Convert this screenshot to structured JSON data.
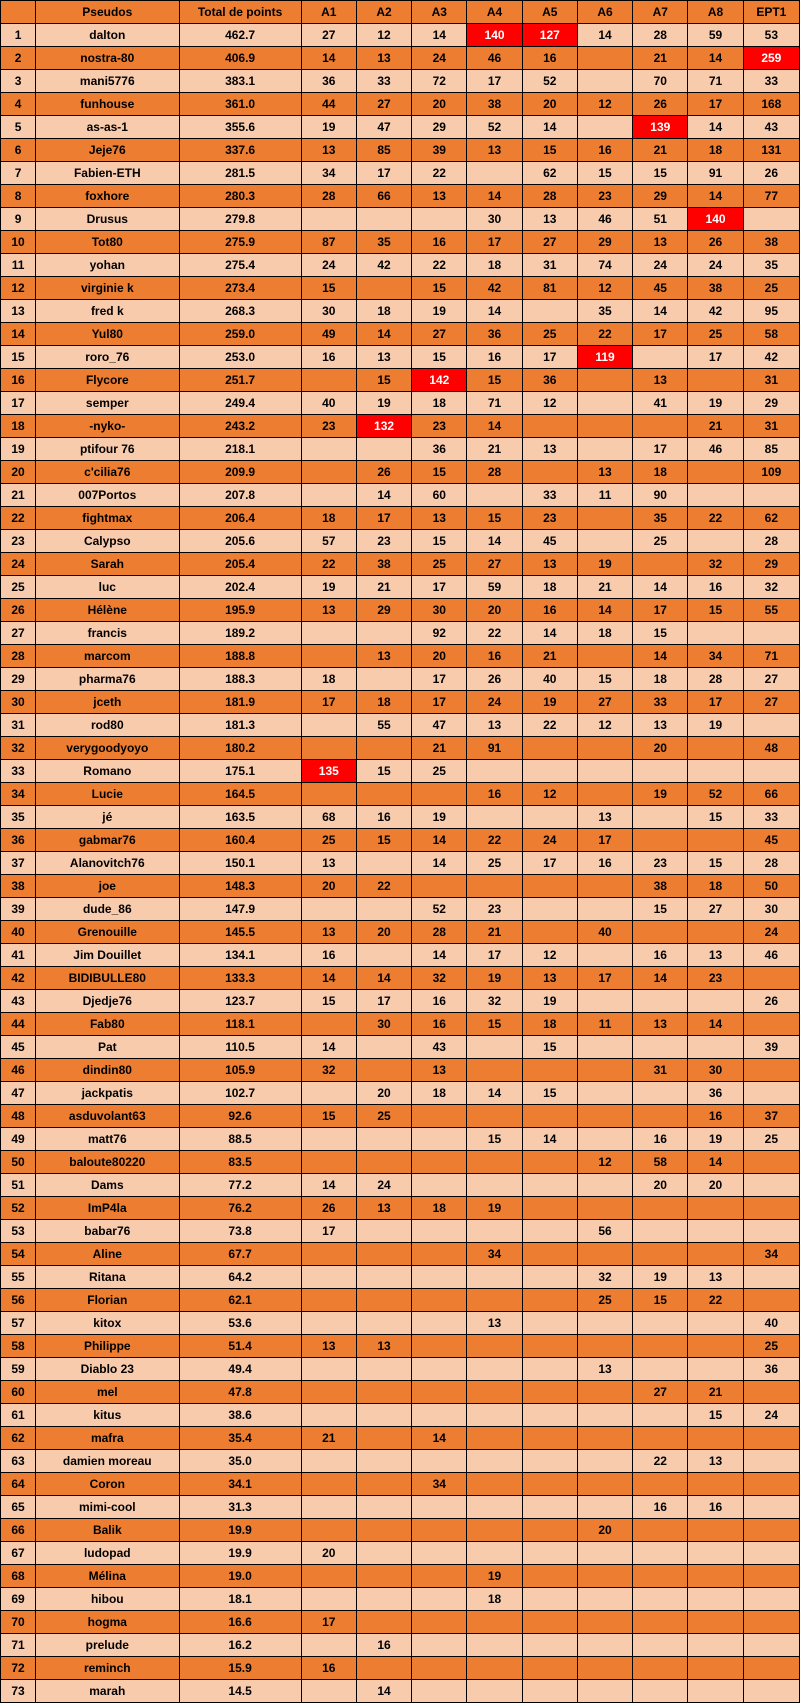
{
  "colors": {
    "header_bg": "#ed7d31",
    "row_dark": "#ed7d31",
    "row_light": "#f8cbad",
    "highlight_bg": "#ff0000",
    "highlight_fg": "#ffffff",
    "border": "#000000"
  },
  "columns": [
    "",
    "Pseudos",
    "Total de points",
    "A1",
    "A2",
    "A3",
    "A4",
    "A5",
    "A6",
    "A7",
    "A8",
    "EPT1"
  ],
  "rows": [
    {
      "rank": 1,
      "pseudo": "dalton",
      "total": "462.7",
      "a": [
        "27",
        "12",
        "14",
        "140",
        "127",
        "14",
        "28",
        "59"
      ],
      "ept": "53",
      "hl": [
        3,
        4
      ]
    },
    {
      "rank": 2,
      "pseudo": "nostra-80",
      "total": "406.9",
      "a": [
        "14",
        "13",
        "24",
        "46",
        "16",
        "",
        "21",
        "14"
      ],
      "ept": "259",
      "hl": [],
      "hlEpt": true
    },
    {
      "rank": 3,
      "pseudo": "mani5776",
      "total": "383.1",
      "a": [
        "36",
        "33",
        "72",
        "17",
        "52",
        "",
        "70",
        "71"
      ],
      "ept": "33",
      "hl": []
    },
    {
      "rank": 4,
      "pseudo": "funhouse",
      "total": "361.0",
      "a": [
        "44",
        "27",
        "20",
        "38",
        "20",
        "12",
        "26",
        "17"
      ],
      "ept": "168",
      "hl": []
    },
    {
      "rank": 5,
      "pseudo": "as-as-1",
      "total": "355.6",
      "a": [
        "19",
        "47",
        "29",
        "52",
        "14",
        "",
        "139",
        "14"
      ],
      "ept": "43",
      "hl": [
        6
      ]
    },
    {
      "rank": 6,
      "pseudo": "Jeje76",
      "total": "337.6",
      "a": [
        "13",
        "85",
        "39",
        "13",
        "15",
        "16",
        "21",
        "18"
      ],
      "ept": "131",
      "hl": []
    },
    {
      "rank": 7,
      "pseudo": "Fabien-ETH",
      "total": "281.5",
      "a": [
        "34",
        "17",
        "22",
        "",
        "62",
        "15",
        "15",
        "91"
      ],
      "ept": "26",
      "hl": []
    },
    {
      "rank": 8,
      "pseudo": "foxhore",
      "total": "280.3",
      "a": [
        "28",
        "66",
        "13",
        "14",
        "28",
        "23",
        "29",
        "14"
      ],
      "ept": "77",
      "hl": []
    },
    {
      "rank": 9,
      "pseudo": "Drusus",
      "total": "279.8",
      "a": [
        "",
        "",
        "",
        "30",
        "13",
        "46",
        "51",
        "140"
      ],
      "ept": "",
      "hl": [
        7
      ]
    },
    {
      "rank": 10,
      "pseudo": "Tot80",
      "total": "275.9",
      "a": [
        "87",
        "35",
        "16",
        "17",
        "27",
        "29",
        "13",
        "26"
      ],
      "ept": "38",
      "hl": []
    },
    {
      "rank": 11,
      "pseudo": "yohan",
      "total": "275.4",
      "a": [
        "24",
        "42",
        "22",
        "18",
        "31",
        "74",
        "24",
        "24"
      ],
      "ept": "35",
      "hl": []
    },
    {
      "rank": 12,
      "pseudo": "virginie k",
      "total": "273.4",
      "a": [
        "15",
        "",
        "15",
        "42",
        "81",
        "12",
        "45",
        "38"
      ],
      "ept": "25",
      "hl": []
    },
    {
      "rank": 13,
      "pseudo": "fred k",
      "total": "268.3",
      "a": [
        "30",
        "18",
        "19",
        "14",
        "",
        "35",
        "14",
        "42"
      ],
      "ept": "95",
      "hl": []
    },
    {
      "rank": 14,
      "pseudo": "Yul80",
      "total": "259.0",
      "a": [
        "49",
        "14",
        "27",
        "36",
        "25",
        "22",
        "17",
        "25"
      ],
      "ept": "58",
      "hl": []
    },
    {
      "rank": 15,
      "pseudo": "roro_76",
      "total": "253.0",
      "a": [
        "16",
        "13",
        "15",
        "16",
        "17",
        "119",
        "",
        "17"
      ],
      "ept": "42",
      "hl": [
        5
      ]
    },
    {
      "rank": 16,
      "pseudo": "Flycore",
      "total": "251.7",
      "a": [
        "",
        "15",
        "142",
        "15",
        "36",
        "",
        "13",
        ""
      ],
      "ept": "31",
      "hl": [
        2
      ]
    },
    {
      "rank": 17,
      "pseudo": "semper",
      "total": "249.4",
      "a": [
        "40",
        "19",
        "18",
        "71",
        "12",
        "",
        "41",
        "19"
      ],
      "ept": "29",
      "hl": []
    },
    {
      "rank": 18,
      "pseudo": "-nyko-",
      "total": "243.2",
      "a": [
        "23",
        "132",
        "23",
        "14",
        "",
        "",
        "",
        "21"
      ],
      "ept": "31",
      "hl": [
        1
      ]
    },
    {
      "rank": 19,
      "pseudo": "ptifour 76",
      "total": "218.1",
      "a": [
        "",
        "",
        "36",
        "21",
        "13",
        "",
        "17",
        "46"
      ],
      "ept": "85",
      "hl": []
    },
    {
      "rank": 20,
      "pseudo": "c'cilia76",
      "total": "209.9",
      "a": [
        "",
        "26",
        "15",
        "28",
        "",
        "13",
        "18",
        ""
      ],
      "ept": "109",
      "hl": []
    },
    {
      "rank": 21,
      "pseudo": "007Portos",
      "total": "207.8",
      "a": [
        "",
        "14",
        "60",
        "",
        "33",
        "11",
        "90",
        ""
      ],
      "ept": "",
      "hl": []
    },
    {
      "rank": 22,
      "pseudo": "fightmax",
      "total": "206.4",
      "a": [
        "18",
        "17",
        "13",
        "15",
        "23",
        "",
        "35",
        "22"
      ],
      "ept": "62",
      "hl": []
    },
    {
      "rank": 23,
      "pseudo": "Calypso",
      "total": "205.6",
      "a": [
        "57",
        "23",
        "15",
        "14",
        "45",
        "",
        "25",
        ""
      ],
      "ept": "28",
      "hl": []
    },
    {
      "rank": 24,
      "pseudo": "Sarah",
      "total": "205.4",
      "a": [
        "22",
        "38",
        "25",
        "27",
        "13",
        "19",
        "",
        "32"
      ],
      "ept": "29",
      "hl": []
    },
    {
      "rank": 25,
      "pseudo": "luc",
      "total": "202.4",
      "a": [
        "19",
        "21",
        "17",
        "59",
        "18",
        "21",
        "14",
        "16"
      ],
      "ept": "32",
      "hl": []
    },
    {
      "rank": 26,
      "pseudo": "Hélène",
      "total": "195.9",
      "a": [
        "13",
        "29",
        "30",
        "20",
        "16",
        "14",
        "17",
        "15"
      ],
      "ept": "55",
      "hl": []
    },
    {
      "rank": 27,
      "pseudo": "francis",
      "total": "189.2",
      "a": [
        "",
        "",
        "92",
        "22",
        "14",
        "18",
        "15",
        ""
      ],
      "ept": "",
      "hl": []
    },
    {
      "rank": 28,
      "pseudo": "marcom",
      "total": "188.8",
      "a": [
        "",
        "13",
        "20",
        "16",
        "21",
        "",
        "14",
        "34"
      ],
      "ept": "71",
      "hl": []
    },
    {
      "rank": 29,
      "pseudo": "pharma76",
      "total": "188.3",
      "a": [
        "18",
        "",
        "17",
        "26",
        "40",
        "15",
        "18",
        "28"
      ],
      "ept": "27",
      "hl": []
    },
    {
      "rank": 30,
      "pseudo": "jceth",
      "total": "181.9",
      "a": [
        "17",
        "18",
        "17",
        "24",
        "19",
        "27",
        "33",
        "17"
      ],
      "ept": "27",
      "hl": []
    },
    {
      "rank": 31,
      "pseudo": "rod80",
      "total": "181.3",
      "a": [
        "",
        "55",
        "47",
        "13",
        "22",
        "12",
        "13",
        "19"
      ],
      "ept": "",
      "hl": []
    },
    {
      "rank": 32,
      "pseudo": "verygoodyoyo",
      "total": "180.2",
      "a": [
        "",
        "",
        "21",
        "91",
        "",
        "",
        "20",
        ""
      ],
      "ept": "48",
      "hl": []
    },
    {
      "rank": 33,
      "pseudo": "Romano",
      "total": "175.1",
      "a": [
        "135",
        "15",
        "25",
        "",
        "",
        "",
        "",
        ""
      ],
      "ept": "",
      "hl": [
        0
      ]
    },
    {
      "rank": 34,
      "pseudo": "Lucie",
      "total": "164.5",
      "a": [
        "",
        "",
        "",
        "16",
        "12",
        "",
        "19",
        "52"
      ],
      "ept": "66",
      "hl": []
    },
    {
      "rank": 35,
      "pseudo": "jé",
      "total": "163.5",
      "a": [
        "68",
        "16",
        "19",
        "",
        "",
        "13",
        "",
        "15"
      ],
      "ept": "33",
      "hl": []
    },
    {
      "rank": 36,
      "pseudo": "gabmar76",
      "total": "160.4",
      "a": [
        "25",
        "15",
        "14",
        "22",
        "24",
        "17",
        "",
        ""
      ],
      "ept": "45",
      "hl": []
    },
    {
      "rank": 37,
      "pseudo": "Alanovitch76",
      "total": "150.1",
      "a": [
        "13",
        "",
        "14",
        "25",
        "17",
        "16",
        "23",
        "15"
      ],
      "ept": "28",
      "hl": []
    },
    {
      "rank": 38,
      "pseudo": "joe",
      "total": "148.3",
      "a": [
        "20",
        "22",
        "",
        "",
        "",
        "",
        "38",
        "18"
      ],
      "ept": "50",
      "hl": []
    },
    {
      "rank": 39,
      "pseudo": "dude_86",
      "total": "147.9",
      "a": [
        "",
        "",
        "52",
        "23",
        "",
        "",
        "15",
        "27"
      ],
      "ept": "30",
      "hl": []
    },
    {
      "rank": 40,
      "pseudo": "Grenouille",
      "total": "145.5",
      "a": [
        "13",
        "20",
        "28",
        "21",
        "",
        "40",
        "",
        ""
      ],
      "ept": "24",
      "hl": []
    },
    {
      "rank": 41,
      "pseudo": "Jim Douillet",
      "total": "134.1",
      "a": [
        "16",
        "",
        "14",
        "17",
        "12",
        "",
        "16",
        "13"
      ],
      "ept": "46",
      "hl": []
    },
    {
      "rank": 42,
      "pseudo": "BIDIBULLE80",
      "total": "133.3",
      "a": [
        "14",
        "14",
        "32",
        "19",
        "13",
        "17",
        "14",
        "23"
      ],
      "ept": "",
      "hl": []
    },
    {
      "rank": 43,
      "pseudo": "Djedje76",
      "total": "123.7",
      "a": [
        "15",
        "17",
        "16",
        "32",
        "19",
        "",
        "",
        ""
      ],
      "ept": "26",
      "hl": []
    },
    {
      "rank": 44,
      "pseudo": "Fab80",
      "total": "118.1",
      "a": [
        "",
        "30",
        "16",
        "15",
        "18",
        "11",
        "13",
        "14"
      ],
      "ept": "",
      "hl": []
    },
    {
      "rank": 45,
      "pseudo": "Pat",
      "total": "110.5",
      "a": [
        "14",
        "",
        "43",
        "",
        "15",
        "",
        "",
        ""
      ],
      "ept": "39",
      "hl": []
    },
    {
      "rank": 46,
      "pseudo": "dindin80",
      "total": "105.9",
      "a": [
        "32",
        "",
        "13",
        "",
        "",
        "",
        "31",
        "30"
      ],
      "ept": "",
      "hl": []
    },
    {
      "rank": 47,
      "pseudo": "jackpatis",
      "total": "102.7",
      "a": [
        "",
        "20",
        "18",
        "14",
        "15",
        "",
        "",
        "36"
      ],
      "ept": "",
      "hl": []
    },
    {
      "rank": 48,
      "pseudo": "asduvolant63",
      "total": "92.6",
      "a": [
        "15",
        "25",
        "",
        "",
        "",
        "",
        "",
        "16"
      ],
      "ept": "37",
      "hl": []
    },
    {
      "rank": 49,
      "pseudo": "matt76",
      "total": "88.5",
      "a": [
        "",
        "",
        "",
        "15",
        "14",
        "",
        "16",
        "19"
      ],
      "ept": "25",
      "hl": []
    },
    {
      "rank": 50,
      "pseudo": "baloute80220",
      "total": "83.5",
      "a": [
        "",
        "",
        "",
        "",
        "",
        "12",
        "58",
        "14"
      ],
      "ept": "",
      "hl": []
    },
    {
      "rank": 51,
      "pseudo": "Dams",
      "total": "77.2",
      "a": [
        "14",
        "24",
        "",
        "",
        "",
        "",
        "20",
        "20"
      ],
      "ept": "",
      "hl": []
    },
    {
      "rank": 52,
      "pseudo": "ImP4la",
      "total": "76.2",
      "a": [
        "26",
        "13",
        "18",
        "19",
        "",
        "",
        "",
        ""
      ],
      "ept": "",
      "hl": []
    },
    {
      "rank": 53,
      "pseudo": "babar76",
      "total": "73.8",
      "a": [
        "17",
        "",
        "",
        "",
        "",
        "56",
        "",
        ""
      ],
      "ept": "",
      "hl": []
    },
    {
      "rank": 54,
      "pseudo": "Aline",
      "total": "67.7",
      "a": [
        "",
        "",
        "",
        "34",
        "",
        "",
        "",
        ""
      ],
      "ept": "34",
      "hl": []
    },
    {
      "rank": 55,
      "pseudo": "Ritana",
      "total": "64.2",
      "a": [
        "",
        "",
        "",
        "",
        "",
        "32",
        "19",
        "13"
      ],
      "ept": "",
      "hl": []
    },
    {
      "rank": 56,
      "pseudo": "Florian",
      "total": "62.1",
      "a": [
        "",
        "",
        "",
        "",
        "",
        "25",
        "15",
        "22"
      ],
      "ept": "",
      "hl": []
    },
    {
      "rank": 57,
      "pseudo": "kitox",
      "total": "53.6",
      "a": [
        "",
        "",
        "",
        "13",
        "",
        "",
        "",
        ""
      ],
      "ept": "40",
      "hl": []
    },
    {
      "rank": 58,
      "pseudo": "Philippe",
      "total": "51.4",
      "a": [
        "13",
        "13",
        "",
        "",
        "",
        "",
        "",
        ""
      ],
      "ept": "25",
      "hl": []
    },
    {
      "rank": 59,
      "pseudo": "Diablo 23",
      "total": "49.4",
      "a": [
        "",
        "",
        "",
        "",
        "",
        "13",
        "",
        ""
      ],
      "ept": "36",
      "hl": []
    },
    {
      "rank": 60,
      "pseudo": "mel",
      "total": "47.8",
      "a": [
        "",
        "",
        "",
        "",
        "",
        "",
        "27",
        "21"
      ],
      "ept": "",
      "hl": []
    },
    {
      "rank": 61,
      "pseudo": "kitus",
      "total": "38.6",
      "a": [
        "",
        "",
        "",
        "",
        "",
        "",
        "",
        "15"
      ],
      "ept": "24",
      "hl": []
    },
    {
      "rank": 62,
      "pseudo": "mafra",
      "total": "35.4",
      "a": [
        "21",
        "",
        "14",
        "",
        "",
        "",
        "",
        ""
      ],
      "ept": "",
      "hl": []
    },
    {
      "rank": 63,
      "pseudo": "damien moreau",
      "total": "35.0",
      "a": [
        "",
        "",
        "",
        "",
        "",
        "",
        "22",
        "13"
      ],
      "ept": "",
      "hl": []
    },
    {
      "rank": 64,
      "pseudo": "Coron",
      "total": "34.1",
      "a": [
        "",
        "",
        "34",
        "",
        "",
        "",
        "",
        ""
      ],
      "ept": "",
      "hl": []
    },
    {
      "rank": 65,
      "pseudo": "mimi-cool",
      "total": "31.3",
      "a": [
        "",
        "",
        "",
        "",
        "",
        "",
        "16",
        "16"
      ],
      "ept": "",
      "hl": []
    },
    {
      "rank": 66,
      "pseudo": "Balik",
      "total": "19.9",
      "a": [
        "",
        "",
        "",
        "",
        "",
        "20",
        "",
        ""
      ],
      "ept": "",
      "hl": []
    },
    {
      "rank": 67,
      "pseudo": "ludopad",
      "total": "19.9",
      "a": [
        "20",
        "",
        "",
        "",
        "",
        "",
        "",
        ""
      ],
      "ept": "",
      "hl": []
    },
    {
      "rank": 68,
      "pseudo": "Mélina",
      "total": "19.0",
      "a": [
        "",
        "",
        "",
        "19",
        "",
        "",
        "",
        ""
      ],
      "ept": "",
      "hl": []
    },
    {
      "rank": 69,
      "pseudo": "hibou",
      "total": "18.1",
      "a": [
        "",
        "",
        "",
        "18",
        "",
        "",
        "",
        ""
      ],
      "ept": "",
      "hl": []
    },
    {
      "rank": 70,
      "pseudo": "hogma",
      "total": "16.6",
      "a": [
        "17",
        "",
        "",
        "",
        "",
        "",
        "",
        ""
      ],
      "ept": "",
      "hl": []
    },
    {
      "rank": 71,
      "pseudo": "prelude",
      "total": "16.2",
      "a": [
        "",
        "16",
        "",
        "",
        "",
        "",
        "",
        ""
      ],
      "ept": "",
      "hl": []
    },
    {
      "rank": 72,
      "pseudo": "reminch",
      "total": "15.9",
      "a": [
        "16",
        "",
        "",
        "",
        "",
        "",
        "",
        ""
      ],
      "ept": "",
      "hl": []
    },
    {
      "rank": 73,
      "pseudo": "marah",
      "total": "14.5",
      "a": [
        "",
        "14",
        "",
        "",
        "",
        "",
        "",
        ""
      ],
      "ept": "",
      "hl": []
    }
  ]
}
